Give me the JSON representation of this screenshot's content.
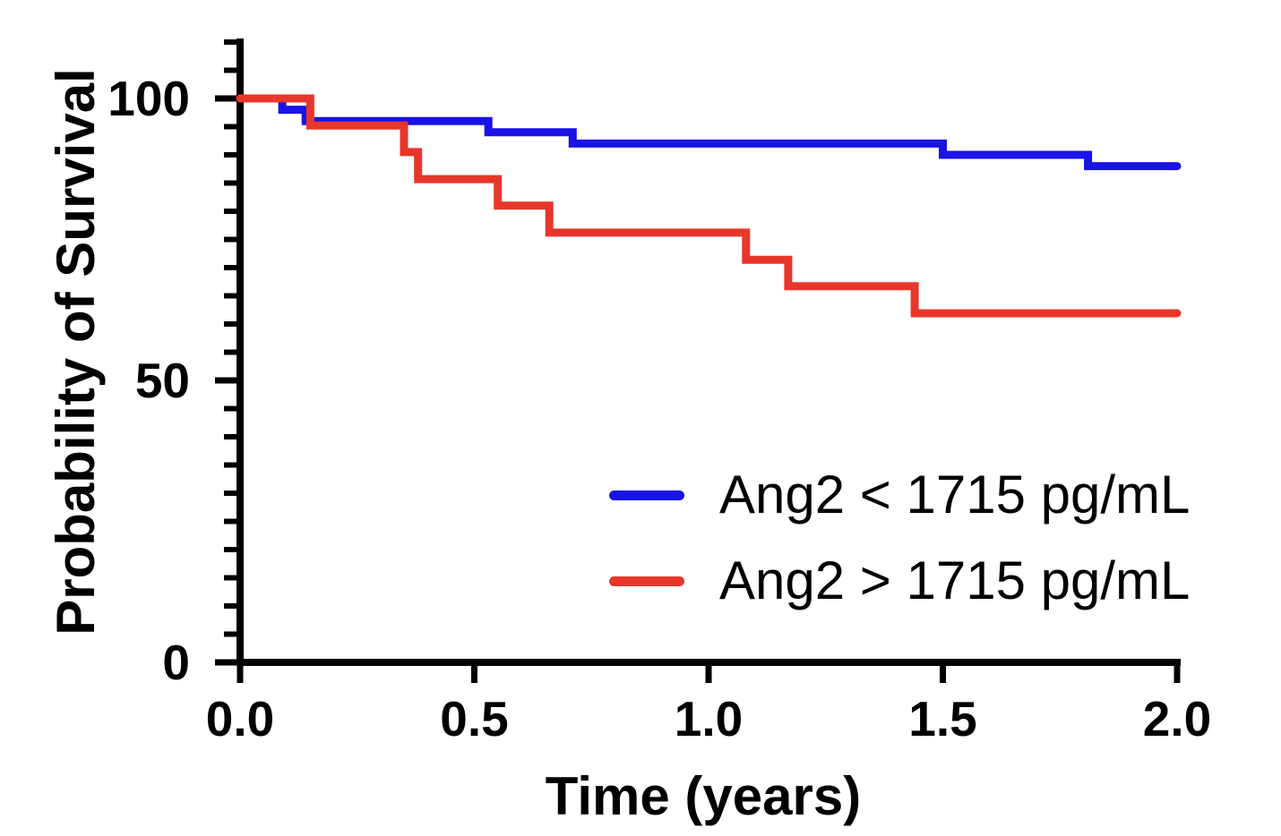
{
  "chart_data": {
    "type": "line",
    "subtype": "kaplan-meier-step",
    "title": "",
    "xlabel": "Time (years)",
    "ylabel": "Probability of Survival",
    "xlim": [
      0,
      2.0
    ],
    "ylim": [
      0,
      100
    ],
    "y_axis_drawn_max": 110,
    "grid": false,
    "legend_position": "inside-center-right",
    "x_ticks": [
      0.0,
      0.5,
      1.0,
      1.5,
      2.0
    ],
    "x_tick_labels": [
      "0.0",
      "0.5",
      "1.0",
      "1.5",
      "2.0"
    ],
    "y_ticks": [
      0,
      50,
      100
    ],
    "y_tick_labels": [
      "0",
      "50",
      "100"
    ],
    "y_minor_tick_step": 5,
    "axis_color": "#000000",
    "series": [
      {
        "name": "Ang2 < 1715 pg/mL",
        "color": "#1A13E6",
        "points": [
          [
            0,
            100
          ],
          [
            0.09,
            100
          ],
          [
            0.09,
            98
          ],
          [
            0.14,
            98
          ],
          [
            0.14,
            96
          ],
          [
            0.53,
            96
          ],
          [
            0.53,
            94
          ],
          [
            0.71,
            94
          ],
          [
            0.71,
            92
          ],
          [
            1.5,
            92
          ],
          [
            1.5,
            90
          ],
          [
            1.81,
            90
          ],
          [
            1.81,
            88
          ],
          [
            2.0,
            88
          ]
        ]
      },
      {
        "name": "Ang2 > 1715 pg/mL",
        "color": "#E8362B",
        "points": [
          [
            0,
            100
          ],
          [
            0.15,
            100
          ],
          [
            0.15,
            95.2
          ],
          [
            0.35,
            95.2
          ],
          [
            0.35,
            90.5
          ],
          [
            0.38,
            90.5
          ],
          [
            0.38,
            85.7
          ],
          [
            0.55,
            85.7
          ],
          [
            0.55,
            81.0
          ],
          [
            0.66,
            81.0
          ],
          [
            0.66,
            76.2
          ],
          [
            1.08,
            76.2
          ],
          [
            1.08,
            71.4
          ],
          [
            1.17,
            71.4
          ],
          [
            1.17,
            66.7
          ],
          [
            1.44,
            66.7
          ],
          [
            1.44,
            61.9
          ],
          [
            2.0,
            61.9
          ]
        ]
      }
    ]
  }
}
